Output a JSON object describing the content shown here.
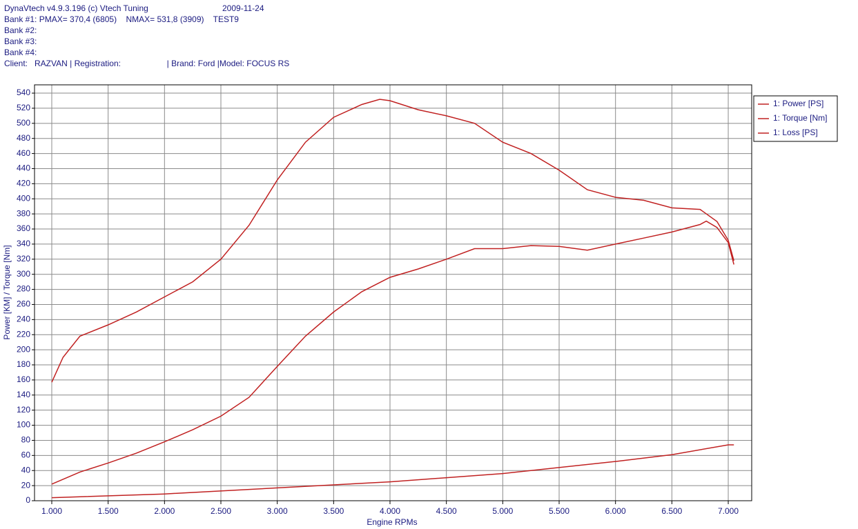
{
  "header": {
    "title": "DynaVtech v4.9.3.196 (c) Vtech Tuning",
    "date": "2009-11-24",
    "bank1": "Bank #1: PMAX= 370,4 (6805)    NMAX= 531,8 (3909)    TEST9",
    "bank2": "Bank #2:",
    "bank3": "Bank #3:",
    "bank4": "Bank #4:",
    "client": "Client:   RAZVAN | Registration:                    | Brand: Ford |Model: FOCUS RS"
  },
  "chart_data": {
    "type": "line",
    "xlabel": "Engine RPMs",
    "ylabel": "Power [KM] / Torque [Nm]",
    "xlim": [
      847,
      7208
    ],
    "ylim": [
      0,
      551
    ],
    "grid": true,
    "legend": "outside-top-right",
    "xticks": [
      {
        "value": 1000,
        "label": "1.000"
      },
      {
        "value": 1500,
        "label": "1.500"
      },
      {
        "value": 2000,
        "label": "2.000"
      },
      {
        "value": 2500,
        "label": "2.500"
      },
      {
        "value": 3000,
        "label": "3.000"
      },
      {
        "value": 3500,
        "label": "3.500"
      },
      {
        "value": 4000,
        "label": "4.000"
      },
      {
        "value": 4500,
        "label": "4.500"
      },
      {
        "value": 5000,
        "label": "5.000"
      },
      {
        "value": 5500,
        "label": "5.500"
      },
      {
        "value": 6000,
        "label": "6.000"
      },
      {
        "value": 6500,
        "label": "6.500"
      },
      {
        "value": 7000,
        "label": "7.000"
      }
    ],
    "yticks": [
      0,
      20,
      40,
      60,
      80,
      100,
      120,
      140,
      160,
      180,
      200,
      220,
      240,
      260,
      280,
      300,
      320,
      340,
      360,
      380,
      400,
      420,
      440,
      460,
      480,
      500,
      520,
      540
    ],
    "series": [
      {
        "name": "1: Power [PS]",
        "color": "#c02020",
        "x": [
          1000,
          1250,
          1500,
          1750,
          2000,
          2250,
          2500,
          2750,
          3000,
          3250,
          3500,
          3750,
          4000,
          4250,
          4500,
          4750,
          5000,
          5250,
          5500,
          5750,
          6000,
          6250,
          6500,
          6750,
          6805,
          6900,
          7000,
          7050
        ],
        "values": [
          22,
          38,
          50,
          63,
          78,
          94,
          112,
          137,
          178,
          218,
          250,
          277,
          296,
          307,
          320,
          334,
          334,
          338,
          337,
          332,
          340,
          348,
          356,
          366,
          370.4,
          362,
          342,
          313
        ]
      },
      {
        "name": "1: Torque [Nm]",
        "color": "#c02020",
        "x": [
          1000,
          1100,
          1250,
          1500,
          1750,
          2000,
          2250,
          2500,
          2750,
          3000,
          3250,
          3500,
          3750,
          3909,
          4000,
          4250,
          4500,
          4750,
          5000,
          5250,
          5500,
          5750,
          6000,
          6250,
          6500,
          6750,
          6900,
          7000,
          7050
        ],
        "values": [
          157,
          190,
          218,
          233,
          250,
          270,
          290,
          320,
          365,
          425,
          475,
          508,
          525,
          531.8,
          530,
          518,
          510,
          500,
          475,
          460,
          438,
          412,
          402,
          398,
          388,
          386,
          370,
          345,
          318
        ]
      },
      {
        "name": "1: Loss [PS]",
        "color": "#c02020",
        "x": [
          1000,
          2000,
          3000,
          4000,
          5000,
          6000,
          6500,
          7000,
          7050
        ],
        "values": [
          4,
          9,
          17,
          25,
          36,
          52,
          61,
          74,
          74
        ]
      }
    ]
  }
}
